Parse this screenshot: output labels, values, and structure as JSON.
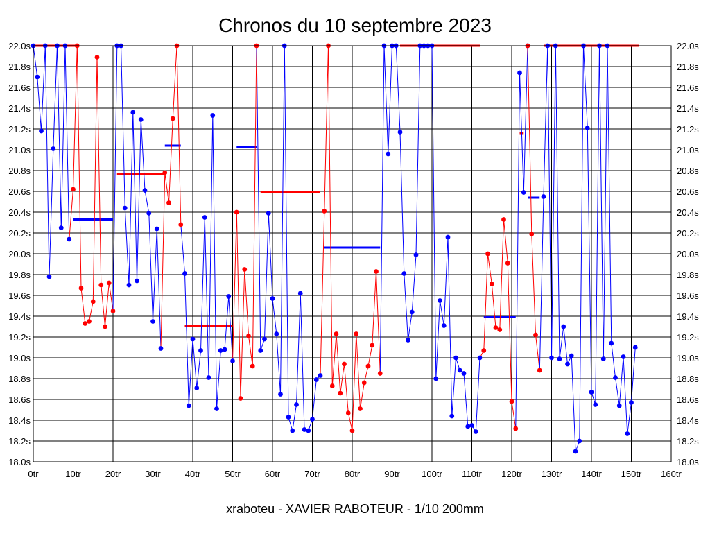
{
  "chart_data": {
    "type": "line",
    "title": "Chronos du 10 septembre 2023",
    "footer": "xraboteu - XAVIER RABOTEUR - 1/10 200mm",
    "xlim": [
      0,
      160
    ],
    "ylim": [
      18.0,
      22.0
    ],
    "x_ticks": [
      0,
      10,
      20,
      30,
      40,
      50,
      60,
      70,
      80,
      90,
      100,
      110,
      120,
      130,
      140,
      150,
      160
    ],
    "x_tick_labels": [
      "0tr",
      "10tr",
      "20tr",
      "30tr",
      "40tr",
      "50tr",
      "60tr",
      "70tr",
      "80tr",
      "90tr",
      "100tr",
      "110tr",
      "120tr",
      "130tr",
      "140tr",
      "150tr",
      "160tr"
    ],
    "y_ticks": [
      18.0,
      18.2,
      18.4,
      18.6,
      18.8,
      19.0,
      19.2,
      19.4,
      19.6,
      19.8,
      20.0,
      20.2,
      20.4,
      20.6,
      20.8,
      21.0,
      21.2,
      21.4,
      21.6,
      21.8,
      22.0
    ],
    "y_tick_labels": [
      "18.0s",
      "18.2s",
      "18.4s",
      "18.6s",
      "18.8s",
      "19.0s",
      "19.2s",
      "19.4s",
      "19.6s",
      "19.8s",
      "20.0s",
      "20.2s",
      "20.4s",
      "20.6s",
      "20.8s",
      "21.0s",
      "21.2s",
      "21.4s",
      "21.6s",
      "21.8s",
      "22.0s"
    ],
    "grid": true,
    "colors": {
      "blue": "#0000ff",
      "red": "#ff0000"
    },
    "stints": [
      {
        "color": "blue",
        "points": [
          [
            0,
            22.0
          ],
          [
            1,
            21.7
          ],
          [
            2,
            21.18
          ],
          [
            3,
            22.0
          ],
          [
            4,
            19.78
          ],
          [
            5,
            21.01
          ],
          [
            6,
            22.0
          ],
          [
            7,
            20.25
          ],
          [
            8,
            22.0
          ],
          [
            9,
            20.14
          ]
        ]
      },
      {
        "color": "red",
        "points": [
          [
            10,
            20.62
          ],
          [
            11,
            22.0
          ],
          [
            12,
            19.67
          ],
          [
            13,
            19.33
          ],
          [
            14,
            19.35
          ],
          [
            15,
            19.54
          ],
          [
            16,
            21.89
          ],
          [
            17,
            19.7
          ],
          [
            18,
            19.3
          ],
          [
            19,
            19.72
          ],
          [
            20,
            19.45
          ]
        ]
      },
      {
        "color": "blue",
        "points": [
          [
            21,
            22.0
          ],
          [
            22,
            22.0
          ],
          [
            23,
            20.44
          ],
          [
            24,
            19.7
          ],
          [
            25,
            21.36
          ],
          [
            26,
            19.74
          ],
          [
            27,
            21.29
          ],
          [
            28,
            20.61
          ],
          [
            29,
            20.39
          ],
          [
            30,
            19.35
          ],
          [
            31,
            20.24
          ],
          [
            32,
            19.09
          ]
        ]
      },
      {
        "color": "red",
        "points": [
          [
            33,
            20.78
          ],
          [
            34,
            20.49
          ],
          [
            35,
            21.3
          ],
          [
            36,
            22.0
          ],
          [
            37,
            20.28
          ]
        ]
      },
      {
        "color": "blue",
        "points": [
          [
            38,
            19.81
          ],
          [
            39,
            18.54
          ],
          [
            40,
            19.18
          ],
          [
            41,
            18.71
          ],
          [
            42,
            19.07
          ],
          [
            43,
            20.35
          ],
          [
            44,
            18.81
          ],
          [
            45,
            21.33
          ],
          [
            46,
            18.51
          ],
          [
            47,
            19.07
          ],
          [
            48,
            19.08
          ],
          [
            49,
            19.59
          ],
          [
            50,
            18.97
          ]
        ]
      },
      {
        "color": "red",
        "points": [
          [
            51,
            20.4
          ],
          [
            52,
            18.61
          ],
          [
            53,
            19.85
          ],
          [
            54,
            19.21
          ],
          [
            55,
            18.92
          ],
          [
            56,
            22.0
          ]
        ]
      },
      {
        "color": "blue",
        "points": [
          [
            57,
            19.07
          ],
          [
            58,
            19.18
          ],
          [
            59,
            20.39
          ],
          [
            60,
            19.57
          ],
          [
            61,
            19.23
          ],
          [
            62,
            18.65
          ],
          [
            63,
            22.0
          ],
          [
            64,
            18.43
          ],
          [
            65,
            18.3
          ],
          [
            66,
            18.55
          ],
          [
            67,
            19.62
          ],
          [
            68,
            18.31
          ],
          [
            69,
            18.3
          ],
          [
            70,
            18.41
          ],
          [
            71,
            18.79
          ],
          [
            72,
            18.83
          ]
        ]
      },
      {
        "color": "red",
        "points": [
          [
            73,
            20.41
          ],
          [
            74,
            22.0
          ],
          [
            75,
            18.73
          ],
          [
            76,
            19.23
          ],
          [
            77,
            18.66
          ],
          [
            78,
            18.94
          ],
          [
            79,
            18.47
          ],
          [
            80,
            18.3
          ],
          [
            81,
            19.23
          ],
          [
            82,
            18.51
          ],
          [
            83,
            18.76
          ],
          [
            84,
            18.92
          ],
          [
            85,
            19.12
          ],
          [
            86,
            19.83
          ],
          [
            87,
            18.85
          ]
        ]
      },
      {
        "color": "blue",
        "points": [
          [
            88,
            22.0
          ],
          [
            89,
            20.96
          ],
          [
            90,
            22.0
          ],
          [
            91,
            22.0
          ],
          [
            92,
            21.17
          ],
          [
            93,
            19.81
          ],
          [
            94,
            19.17
          ],
          [
            95,
            19.44
          ],
          [
            96,
            19.99
          ],
          [
            97,
            22.0
          ],
          [
            98,
            22.0
          ],
          [
            99,
            22.0
          ],
          [
            100,
            22.0
          ],
          [
            101,
            18.8
          ],
          [
            102,
            19.55
          ],
          [
            103,
            19.31
          ],
          [
            104,
            20.16
          ],
          [
            105,
            18.44
          ],
          [
            106,
            19.0
          ],
          [
            107,
            18.88
          ],
          [
            108,
            18.85
          ],
          [
            109,
            18.34
          ],
          [
            110,
            18.35
          ],
          [
            111,
            18.29
          ],
          [
            112,
            19.0
          ]
        ]
      },
      {
        "color": "red",
        "points": [
          [
            113,
            19.07
          ],
          [
            114,
            20.0
          ],
          [
            115,
            19.71
          ],
          [
            116,
            19.29
          ],
          [
            117,
            19.27
          ],
          [
            118,
            20.33
          ],
          [
            119,
            19.91
          ],
          [
            120,
            18.58
          ],
          [
            121,
            18.32
          ]
        ]
      },
      {
        "color": "blue",
        "points": [
          [
            122,
            21.74
          ],
          [
            123,
            20.59
          ],
          [
            124,
            22.0
          ]
        ]
      },
      {
        "color": "red",
        "points": [
          [
            124,
            22.0
          ],
          [
            125,
            20.19
          ],
          [
            126,
            19.22
          ],
          [
            127,
            18.88
          ]
        ]
      },
      {
        "color": "blue",
        "points": [
          [
            128,
            20.55
          ],
          [
            129,
            22.0
          ],
          [
            130,
            19.0
          ],
          [
            131,
            22.0
          ],
          [
            132,
            18.99
          ],
          [
            133,
            19.3
          ],
          [
            134,
            18.94
          ],
          [
            135,
            19.02
          ],
          [
            136,
            18.1
          ],
          [
            137,
            18.2
          ],
          [
            138,
            22.0
          ],
          [
            139,
            21.21
          ],
          [
            140,
            18.67
          ],
          [
            141,
            18.55
          ],
          [
            142,
            22.0
          ],
          [
            143,
            18.99
          ],
          [
            144,
            22.0
          ],
          [
            145,
            19.14
          ],
          [
            146,
            18.81
          ],
          [
            147,
            18.54
          ],
          [
            148,
            19.01
          ],
          [
            149,
            18.27
          ],
          [
            150,
            18.57
          ],
          [
            151,
            19.1
          ]
        ]
      }
    ],
    "average_lines": [
      {
        "color": "red",
        "x": [
          0,
          11
        ],
        "y": 22.0
      },
      {
        "color": "blue",
        "x": [
          10,
          20
        ],
        "y": 20.33
      },
      {
        "color": "red",
        "x": [
          21,
          33
        ],
        "y": 20.77
      },
      {
        "color": "blue",
        "x": [
          33,
          37
        ],
        "y": 21.04
      },
      {
        "color": "red",
        "x": [
          38,
          50
        ],
        "y": 19.31
      },
      {
        "color": "blue",
        "x": [
          51,
          56
        ],
        "y": 21.03
      },
      {
        "color": "red",
        "x": [
          57,
          72
        ],
        "y": 20.59
      },
      {
        "color": "blue",
        "x": [
          73,
          87
        ],
        "y": 20.06
      },
      {
        "color": "red",
        "x": [
          92,
          112
        ],
        "y": 22.0
      },
      {
        "color": "blue",
        "x": [
          113,
          121
        ],
        "y": 19.39
      },
      {
        "color": "red",
        "x": [
          122,
          123
        ],
        "y": 21.16
      },
      {
        "color": "blue",
        "x": [
          124,
          127
        ],
        "y": 20.54
      },
      {
        "color": "red",
        "x": [
          128,
          152
        ],
        "y": 22.0
      }
    ]
  }
}
